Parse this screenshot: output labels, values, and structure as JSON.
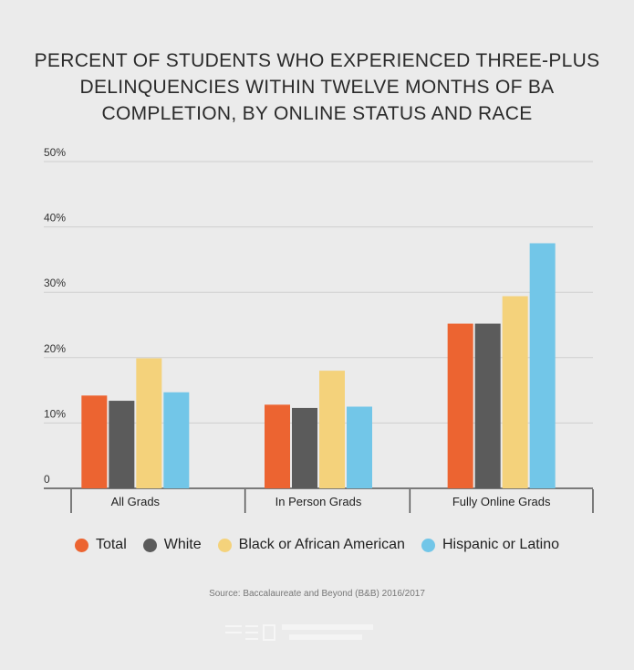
{
  "colors": {
    "Total": "#ec6431",
    "White": "#5b5b5b",
    "Black or African American": "#f4d27b",
    "Hispanic or Latino": "#72c6e8",
    "grid": "#cfcfcf",
    "axis": "#555555"
  },
  "source": "Source: Baccalaureate and Beyond (B&B) 2016/2017",
  "chart_data": {
    "type": "bar",
    "title": "PERCENT OF STUDENTS WHO EXPERIENCED THREE-PLUS DELINQUENCIES WITHIN TWELVE MONTHS OF BA COMPLETION, BY ONLINE STATUS AND RACE",
    "categories": [
      "All Grads",
      "In Person Grads",
      "Fully Online Grads"
    ],
    "series": [
      {
        "name": "Total",
        "values": [
          14.2,
          12.8,
          25.2
        ]
      },
      {
        "name": "White",
        "values": [
          13.4,
          12.3,
          25.2
        ]
      },
      {
        "name": "Black or African American",
        "values": [
          19.9,
          18.0,
          29.4
        ]
      },
      {
        "name": "Hispanic or Latino",
        "values": [
          14.7,
          12.5,
          37.5
        ]
      }
    ],
    "ylim": [
      0,
      50
    ],
    "yticks": [
      0,
      10,
      20,
      30,
      40,
      50
    ],
    "ytick_labels": [
      "0",
      "10%",
      "20%",
      "30%",
      "40%",
      "50%"
    ],
    "xlabel": "",
    "ylabel": "",
    "grid": true,
    "legend": "bottom"
  }
}
